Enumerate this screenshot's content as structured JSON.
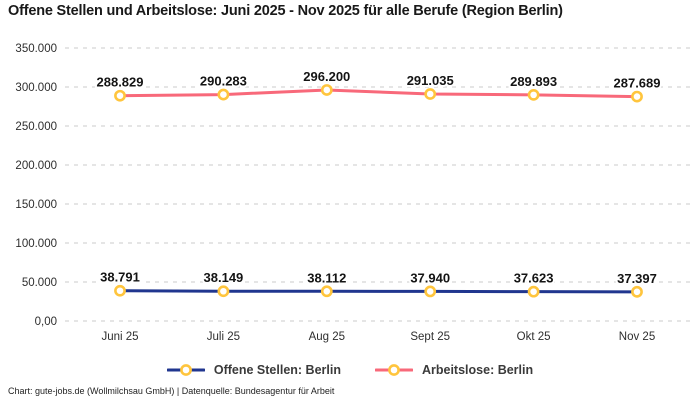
{
  "title": "Offene Stellen und Arbeitslose: Juni 2025 - Nov 2025 für alle Berufe (Region Berlin)",
  "footer": "Chart: gute-jobs.de (Wollmilchsau GmbH) | Datenquelle: Bundesagentur für Arbeit",
  "colors": {
    "background": "#ffffff",
    "grid": "#cbcbcb",
    "axis_text": "#2e2e2e",
    "title_text": "#191919",
    "data_label_text": "#141414",
    "series_open_positions": "#20368F",
    "series_unemployed": "#F8697A",
    "marker_ring": "#FFC53D",
    "marker_fill": "#ffffff"
  },
  "chart_data": {
    "type": "line",
    "title": "Offene Stellen und Arbeitslose: Juni 2025 - Nov 2025 für alle Berufe (Region Berlin)",
    "categories": [
      "Juni 25",
      "Juli 25",
      "Aug 25",
      "Sept 25",
      "Okt 25",
      "Nov 25"
    ],
    "series": [
      {
        "name": "Offene Stellen: Berlin",
        "color": "#20368F",
        "values": [
          38791,
          38149,
          38112,
          37940,
          37623,
          37397
        ],
        "labels": [
          "38.791",
          "38.149",
          "38.112",
          "37.940",
          "37.623",
          "37.397"
        ]
      },
      {
        "name": "Arbeitslose: Berlin",
        "color": "#F8697A",
        "values": [
          288829,
          290283,
          296200,
          291035,
          289893,
          287689
        ],
        "labels": [
          "288.829",
          "290.283",
          "296.200",
          "291.035",
          "289.893",
          "287.689"
        ]
      }
    ],
    "xlabel": "",
    "ylabel": "",
    "ylim": [
      0,
      350000
    ],
    "ytick_labels": [
      "0,00",
      "50.000",
      "100.000",
      "150.000",
      "200.000",
      "250.000",
      "300.000",
      "350.000"
    ],
    "grid": "horizontal-dashed",
    "legend_position": "bottom",
    "marker": {
      "stroke": "#FFC53D",
      "fill": "#ffffff"
    }
  }
}
